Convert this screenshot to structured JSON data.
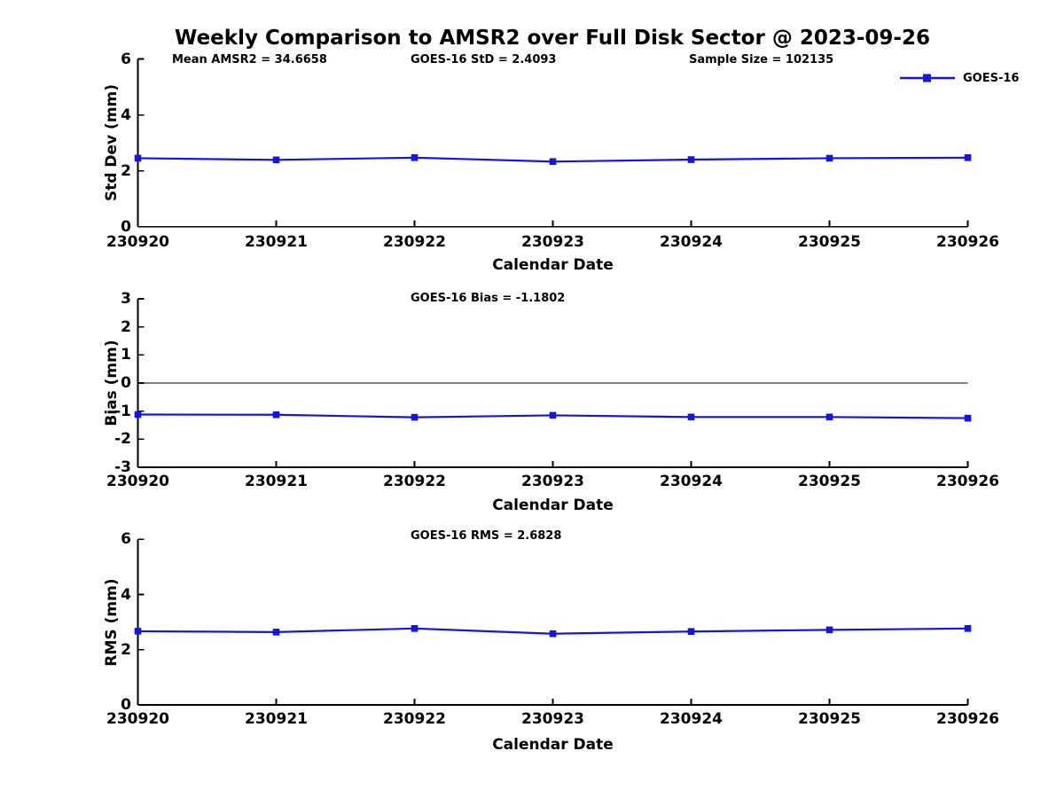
{
  "title": "Weekly Comparison to AMSR2 over Full Disk Sector @ 2023-09-26",
  "legend": {
    "label": "GOES-16"
  },
  "colors": {
    "line": "#1515dd",
    "axis": "#000000",
    "text": "#000000",
    "background": "#ffffff"
  },
  "chart_data": [
    {
      "type": "line",
      "annotations": [
        "Mean AMSR2 = 34.6658",
        "GOES-16 StD = 2.4093",
        "Sample Size = 102135"
      ],
      "xlabel": "Calendar Date",
      "ylabel": "Std Dev (mm)",
      "x": [
        "230920",
        "230921",
        "230922",
        "230923",
        "230924",
        "230925",
        "230926"
      ],
      "yticks": [
        0,
        2,
        4,
        6
      ],
      "ylim": [
        0,
        6
      ],
      "grid": false,
      "zero_line": false,
      "series": [
        {
          "name": "GOES-16",
          "marker": "square",
          "values": [
            2.45,
            2.39,
            2.47,
            2.33,
            2.4,
            2.45,
            2.47
          ]
        }
      ]
    },
    {
      "type": "line",
      "annotations": [
        "GOES-16 Bias  = -1.1802"
      ],
      "xlabel": "Calendar Date",
      "ylabel": "Bias (mm)",
      "x": [
        "230920",
        "230921",
        "230922",
        "230923",
        "230924",
        "230925",
        "230926"
      ],
      "yticks": [
        -3,
        -2,
        -1,
        0,
        1,
        2,
        3
      ],
      "ylim": [
        -3,
        3
      ],
      "grid": false,
      "zero_line": true,
      "series": [
        {
          "name": "GOES-16",
          "marker": "square",
          "values": [
            -1.12,
            -1.13,
            -1.22,
            -1.15,
            -1.21,
            -1.21,
            -1.25
          ]
        }
      ]
    },
    {
      "type": "line",
      "annotations": [
        "GOES-16 RMS = 2.6828"
      ],
      "xlabel": "Calendar Date",
      "ylabel": "RMS (mm)",
      "x": [
        "230920",
        "230921",
        "230922",
        "230923",
        "230924",
        "230925",
        "230926"
      ],
      "yticks": [
        0,
        2,
        4,
        6
      ],
      "ylim": [
        0,
        6
      ],
      "grid": false,
      "zero_line": false,
      "series": [
        {
          "name": "GOES-16",
          "marker": "square",
          "values": [
            2.67,
            2.64,
            2.77,
            2.58,
            2.66,
            2.72,
            2.77
          ]
        }
      ]
    }
  ]
}
